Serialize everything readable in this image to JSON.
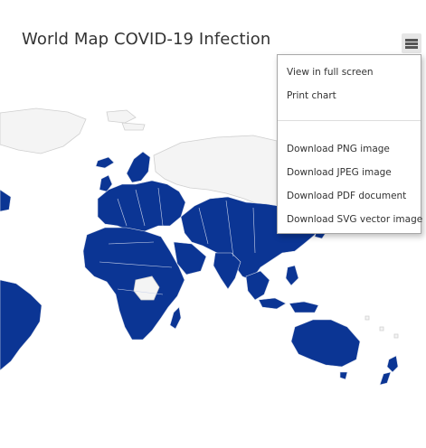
{
  "chart": {
    "title": "World Map COVID-19 Infection"
  },
  "menu_button": {
    "icon": "hamburger-menu-icon"
  },
  "context_menu": {
    "items": [
      {
        "label": "View in full screen"
      },
      {
        "label": "Print chart"
      },
      {
        "label": "Download PNG image"
      },
      {
        "label": "Download JPEG image"
      },
      {
        "label": "Download PDF document"
      },
      {
        "label": "Download SVG vector image"
      }
    ]
  },
  "colors": {
    "infected": "#0b3594",
    "no_data": "#f4f4f4",
    "title": "#333333"
  }
}
